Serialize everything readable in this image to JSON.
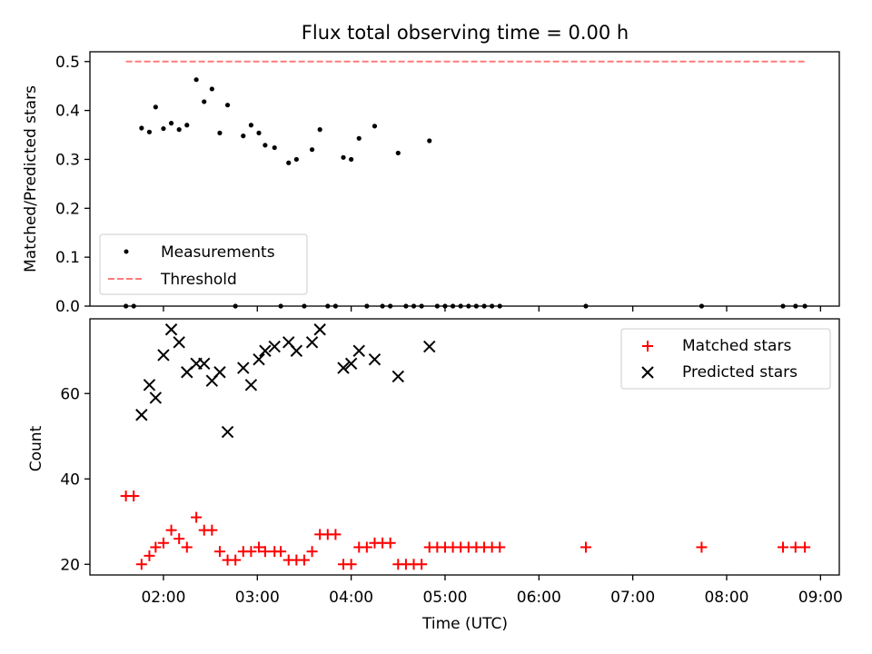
{
  "chart_data": [
    {
      "type": "scatter",
      "title": "Flux total observing time = 0.00 h",
      "ylabel": "Matched/Predicted stars",
      "xlabel": "",
      "ylim": [
        0,
        0.52
      ],
      "yticks": [
        0.0,
        0.1,
        0.2,
        0.3,
        0.4,
        0.5
      ],
      "xlim": [
        "01:13",
        "09:12"
      ],
      "grid": false,
      "legend": "lower-left",
      "series": [
        {
          "name": "Measurements",
          "marker": "dot",
          "color": "#000000",
          "points": [
            [
              "01:36",
              0.0
            ],
            [
              "01:41",
              0.0
            ],
            [
              "01:46",
              0.364
            ],
            [
              "01:51",
              0.356
            ],
            [
              "01:55",
              0.407
            ],
            [
              "02:00",
              0.363
            ],
            [
              "02:05",
              0.374
            ],
            [
              "02:10",
              0.361
            ],
            [
              "02:15",
              0.37
            ],
            [
              "02:21",
              0.463
            ],
            [
              "02:26",
              0.418
            ],
            [
              "02:31",
              0.444
            ],
            [
              "02:36",
              0.354
            ],
            [
              "02:41",
              0.411
            ],
            [
              "02:46",
              0.0
            ],
            [
              "02:51",
              0.348
            ],
            [
              "02:56",
              0.37
            ],
            [
              "03:01",
              0.354
            ],
            [
              "03:05",
              0.329
            ],
            [
              "03:11",
              0.324
            ],
            [
              "03:15",
              0.0
            ],
            [
              "03:20",
              0.293
            ],
            [
              "03:25",
              0.3
            ],
            [
              "03:30",
              0.0
            ],
            [
              "03:35",
              0.32
            ],
            [
              "03:40",
              0.361
            ],
            [
              "03:45",
              0.0
            ],
            [
              "03:50",
              0.0
            ],
            [
              "03:55",
              0.304
            ],
            [
              "04:00",
              0.3
            ],
            [
              "04:05",
              0.343
            ],
            [
              "04:10",
              0.0
            ],
            [
              "04:15",
              0.368
            ],
            [
              "04:20",
              0.0
            ],
            [
              "04:25",
              0.0
            ],
            [
              "04:30",
              0.313
            ],
            [
              "04:35",
              0.0
            ],
            [
              "04:40",
              0.0
            ],
            [
              "04:45",
              0.0
            ],
            [
              "04:50",
              0.338
            ],
            [
              "04:55",
              0.0
            ],
            [
              "05:00",
              0.0
            ],
            [
              "05:05",
              0.0
            ],
            [
              "05:10",
              0.0
            ],
            [
              "05:15",
              0.0
            ],
            [
              "05:20",
              0.0
            ],
            [
              "05:25",
              0.0
            ],
            [
              "05:30",
              0.0
            ],
            [
              "05:35",
              0.0
            ],
            [
              "06:30",
              0.0
            ],
            [
              "07:44",
              0.0
            ],
            [
              "08:36",
              0.0
            ],
            [
              "08:44",
              0.0
            ],
            [
              "08:50",
              0.0
            ]
          ]
        },
        {
          "name": "Threshold",
          "style": "dashed",
          "color": "#ff7b7b",
          "points": [
            [
              "01:36",
              0.5
            ],
            [
              "08:50",
              0.5
            ]
          ]
        }
      ]
    },
    {
      "type": "scatter",
      "title": "",
      "ylabel": "Count",
      "xlabel": "Time (UTC)",
      "ylim": [
        17.5,
        77.5
      ],
      "yticks": [
        20,
        40,
        60
      ],
      "xlim": [
        "01:13",
        "09:12"
      ],
      "xticks": [
        "02:00",
        "03:00",
        "04:00",
        "05:00",
        "06:00",
        "07:00",
        "08:00",
        "09:00"
      ],
      "grid": false,
      "legend": "top-right",
      "series": [
        {
          "name": "Matched stars",
          "marker": "plus",
          "color": "#ff0000",
          "points": [
            [
              "01:36",
              36
            ],
            [
              "01:41",
              36
            ],
            [
              "01:46",
              20
            ],
            [
              "01:51",
              22
            ],
            [
              "01:55",
              24
            ],
            [
              "02:00",
              25
            ],
            [
              "02:05",
              28
            ],
            [
              "02:10",
              26
            ],
            [
              "02:15",
              24
            ],
            [
              "02:21",
              31
            ],
            [
              "02:26",
              28
            ],
            [
              "02:31",
              28
            ],
            [
              "02:36",
              23
            ],
            [
              "02:41",
              21
            ],
            [
              "02:46",
              21
            ],
            [
              "02:51",
              23
            ],
            [
              "02:56",
              23
            ],
            [
              "03:01",
              24
            ],
            [
              "03:05",
              23
            ],
            [
              "03:11",
              23
            ],
            [
              "03:15",
              23
            ],
            [
              "03:20",
              21
            ],
            [
              "03:25",
              21
            ],
            [
              "03:30",
              21
            ],
            [
              "03:35",
              23
            ],
            [
              "03:40",
              27
            ],
            [
              "03:45",
              27
            ],
            [
              "03:50",
              27
            ],
            [
              "03:55",
              20
            ],
            [
              "04:00",
              20
            ],
            [
              "04:05",
              24
            ],
            [
              "04:10",
              24
            ],
            [
              "04:15",
              25
            ],
            [
              "04:20",
              25
            ],
            [
              "04:25",
              25
            ],
            [
              "04:30",
              20
            ],
            [
              "04:35",
              20
            ],
            [
              "04:40",
              20
            ],
            [
              "04:45",
              20
            ],
            [
              "04:50",
              24
            ],
            [
              "04:55",
              24
            ],
            [
              "05:00",
              24
            ],
            [
              "05:05",
              24
            ],
            [
              "05:10",
              24
            ],
            [
              "05:15",
              24
            ],
            [
              "05:20",
              24
            ],
            [
              "05:25",
              24
            ],
            [
              "05:30",
              24
            ],
            [
              "05:35",
              24
            ],
            [
              "06:30",
              24
            ],
            [
              "07:44",
              24
            ],
            [
              "08:36",
              24
            ],
            [
              "08:44",
              24
            ],
            [
              "08:50",
              24
            ]
          ]
        },
        {
          "name": "Predicted stars",
          "marker": "x",
          "color": "#000000",
          "points": [
            [
              "01:46",
              55
            ],
            [
              "01:51",
              62
            ],
            [
              "01:55",
              59
            ],
            [
              "02:00",
              69
            ],
            [
              "02:05",
              75
            ],
            [
              "02:10",
              72
            ],
            [
              "02:15",
              65
            ],
            [
              "02:21",
              67
            ],
            [
              "02:26",
              67
            ],
            [
              "02:31",
              63
            ],
            [
              "02:36",
              65
            ],
            [
              "02:41",
              51
            ],
            [
              "02:51",
              66
            ],
            [
              "02:56",
              62
            ],
            [
              "03:01",
              68
            ],
            [
              "03:05",
              70
            ],
            [
              "03:11",
              71
            ],
            [
              "03:20",
              72
            ],
            [
              "03:25",
              70
            ],
            [
              "03:35",
              72
            ],
            [
              "03:40",
              75
            ],
            [
              "03:55",
              66
            ],
            [
              "04:00",
              67
            ],
            [
              "04:05",
              70
            ],
            [
              "04:15",
              68
            ],
            [
              "04:30",
              64
            ],
            [
              "04:50",
              71
            ]
          ]
        }
      ]
    }
  ]
}
